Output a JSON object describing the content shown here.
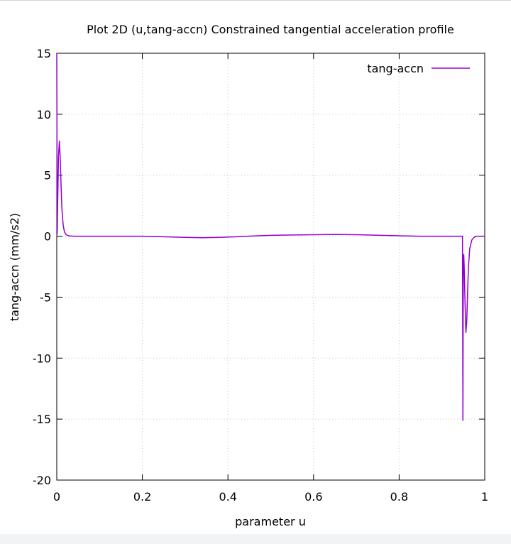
{
  "chart_data": {
    "type": "line",
    "title": "Plot 2D (u,tang-accn) Constrained tangential acceleration profile",
    "xlabel": "parameter u",
    "ylabel": "tang-accn (mm/s2)",
    "xlim": [
      0,
      1
    ],
    "ylim": [
      -20,
      15
    ],
    "xticks": [
      0,
      0.2,
      0.4,
      0.6,
      0.8,
      1
    ],
    "xtick_labels": [
      "0",
      "0.2",
      "0.4",
      "0.6",
      "0.8",
      "1"
    ],
    "yticks": [
      -20,
      -15,
      -10,
      -5,
      0,
      5,
      10,
      15
    ],
    "ytick_labels": [
      "-20",
      "-15",
      "-10",
      "-5",
      "0",
      "5",
      "10",
      "15"
    ],
    "grid": true,
    "legend_position": "top-right",
    "colors": {
      "series": "#9400d3",
      "grid": "#c8c8c8",
      "axis": "#000000"
    },
    "series": [
      {
        "name": "tang-accn",
        "x": [
          0,
          0.001,
          0.002,
          0.004,
          0.006,
          0.008,
          0.01,
          0.012,
          0.015,
          0.018,
          0.022,
          0.026,
          0.03,
          0.035,
          0.04,
          0.06,
          0.1,
          0.15,
          0.2,
          0.25,
          0.3,
          0.34,
          0.38,
          0.42,
          0.46,
          0.5,
          0.55,
          0.6,
          0.65,
          0.7,
          0.75,
          0.8,
          0.85,
          0.9,
          0.94,
          0.948,
          0.949,
          0.9495,
          0.95,
          0.951,
          0.952,
          0.954,
          0.956,
          0.958,
          0.96,
          0.962,
          0.965,
          0.97,
          0.975,
          0.98,
          0.99,
          1.0
        ],
        "y": [
          15,
          0.2,
          2.5,
          6.5,
          7.8,
          6.5,
          4.2,
          2.2,
          0.9,
          0.35,
          0.12,
          0.05,
          0.02,
          0.01,
          0.0,
          0.0,
          0.0,
          0.0,
          0.0,
          -0.05,
          -0.1,
          -0.13,
          -0.1,
          -0.05,
          0.02,
          0.07,
          0.1,
          0.12,
          0.14,
          0.12,
          0.08,
          0.03,
          0.0,
          0.0,
          0.0,
          0.0,
          -15.1,
          -7.0,
          -2.0,
          -1.5,
          -2.5,
          -5.5,
          -7.9,
          -7.0,
          -4.5,
          -2.5,
          -1.0,
          -0.3,
          -0.1,
          0.0,
          0.0,
          0.0
        ]
      }
    ]
  }
}
